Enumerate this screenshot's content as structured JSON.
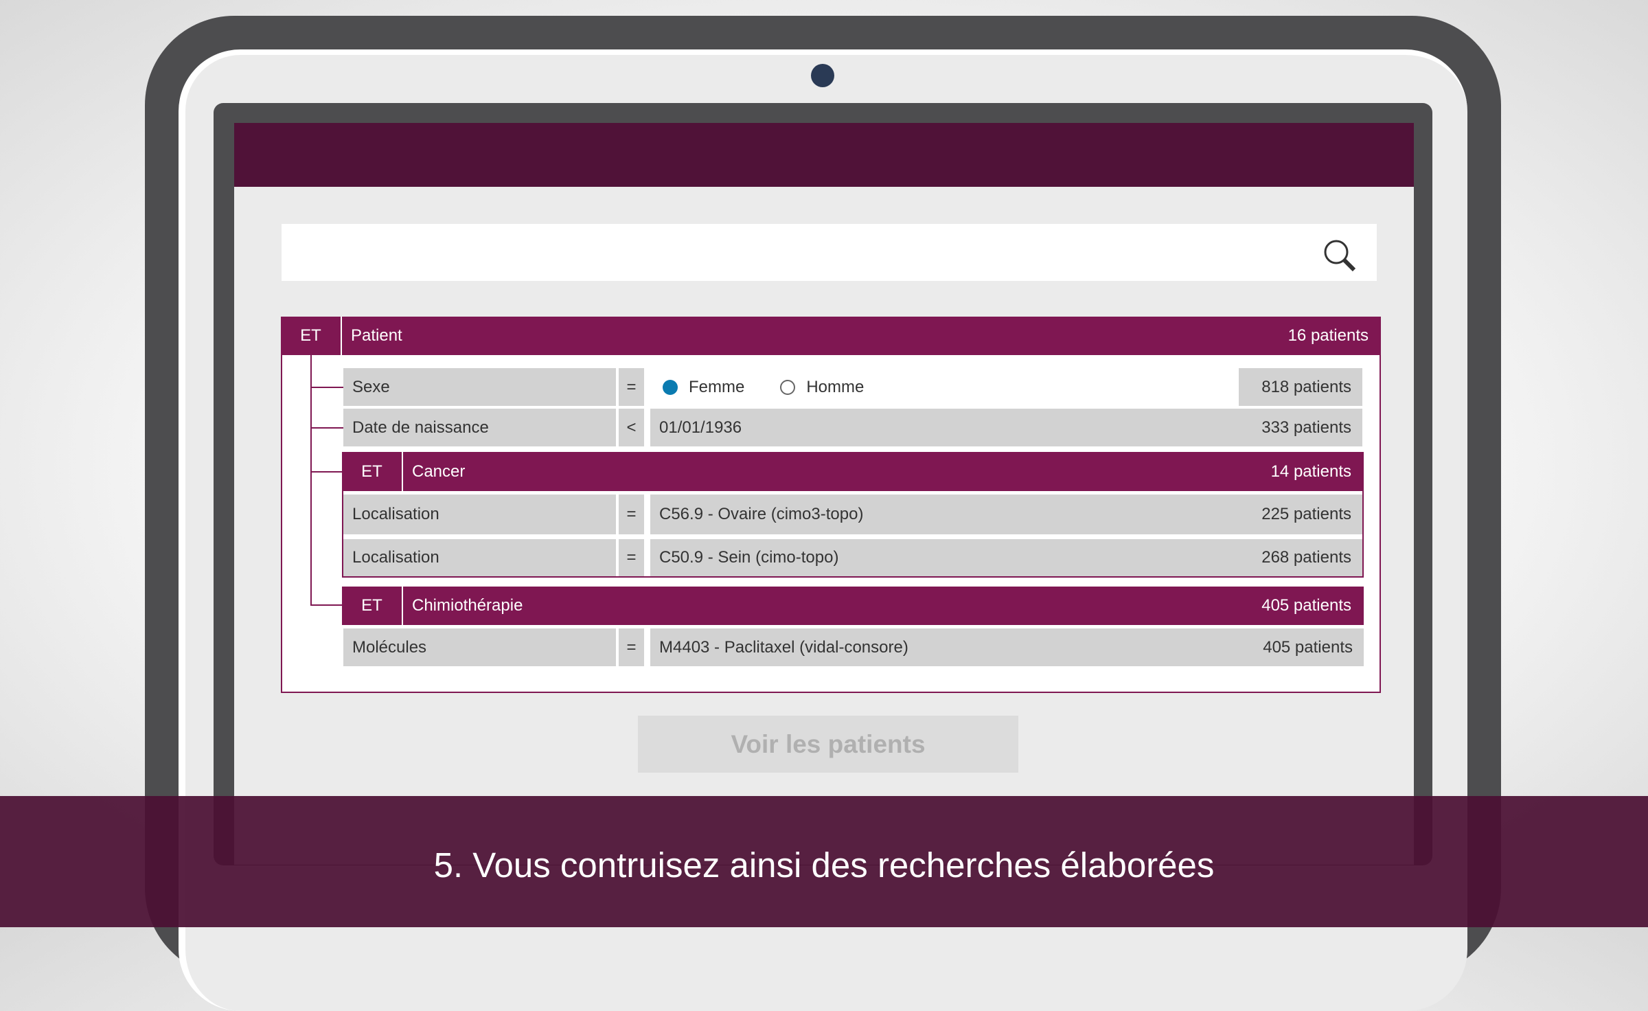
{
  "colors": {
    "brand_dark": "#501238",
    "brand": "#7f1752",
    "radio_selected": "#0b7bb0"
  },
  "search": {
    "value": "",
    "icon": "search-icon"
  },
  "query": {
    "root": {
      "operator": "ET",
      "title": "Patient",
      "count": "16 patients"
    },
    "criteria": [
      {
        "label": "Sexe",
        "operator": "=",
        "options": [
          "Femme",
          "Homme"
        ],
        "selected": "Femme",
        "count": "818 patients"
      },
      {
        "label": "Date de naissance",
        "operator": "<",
        "value": "01/01/1936",
        "count": "333 patients"
      }
    ],
    "groups": [
      {
        "operator": "ET",
        "title": "Cancer",
        "count": "14 patients",
        "rows": [
          {
            "label": "Localisation",
            "operator": "=",
            "value": "C56.9 - Ovaire (cimo3-topo)",
            "count": "225 patients"
          },
          {
            "label": "Localisation",
            "operator": "=",
            "value": "C50.9 - Sein (cimo-topo)",
            "count": "268 patients"
          }
        ]
      },
      {
        "operator": "ET",
        "title": "Chimiothérapie",
        "count": "405 patients",
        "rows": [
          {
            "label": "Molécules",
            "operator": "=",
            "value": "M4403 - Paclitaxel (vidal-consore)",
            "count": "405 patients"
          }
        ]
      }
    ]
  },
  "action": {
    "show_patients": "Voir les patients"
  },
  "caption": "5. Vous contruisez ainsi des recherches élaborées"
}
